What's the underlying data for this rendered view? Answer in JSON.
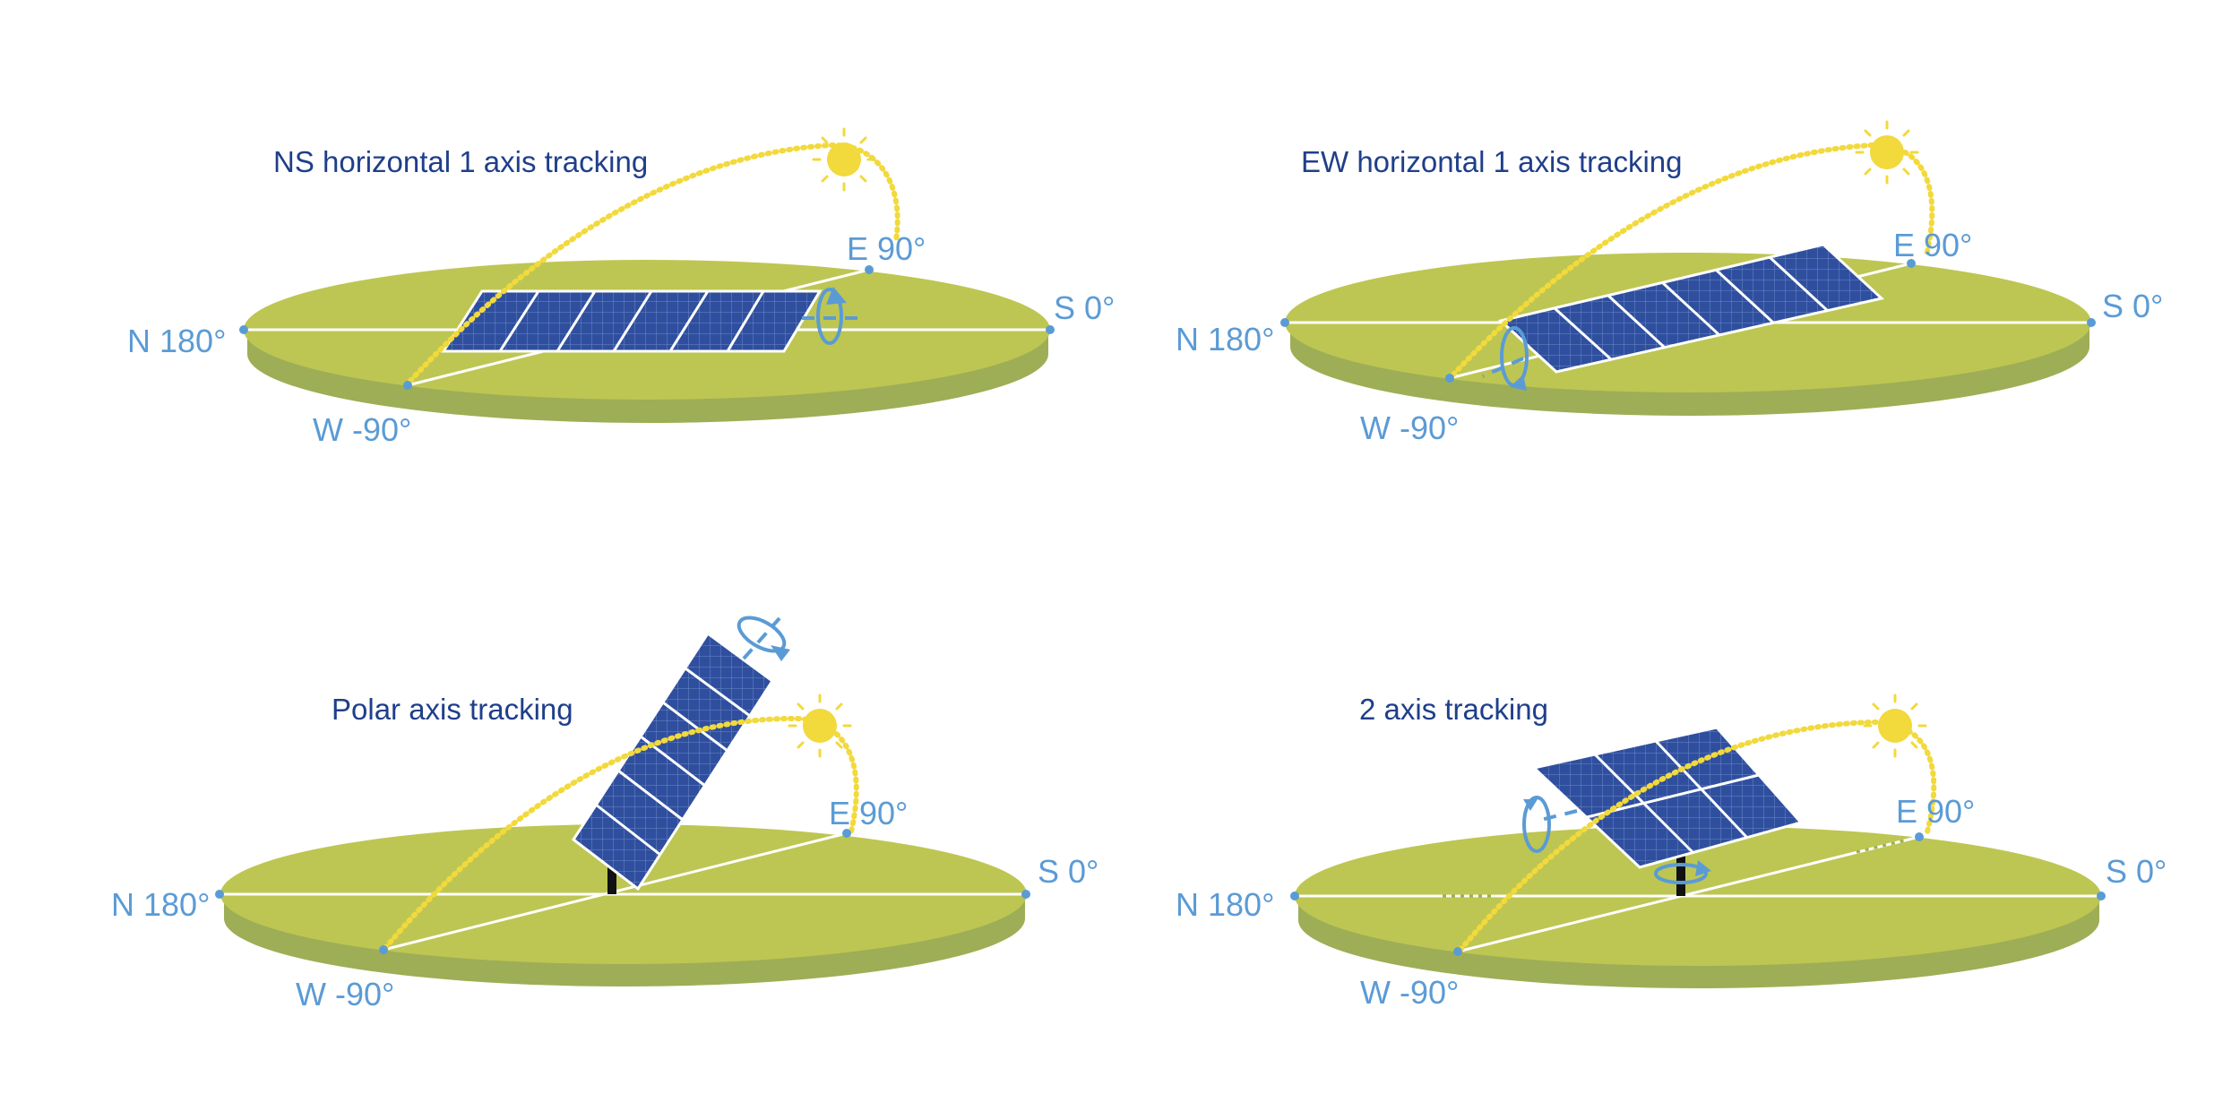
{
  "panels": [
    {
      "title": "NS horizontal 1 axis tracking",
      "north": "N 180°",
      "south": "S 0°",
      "east": "E 90°",
      "west": "W -90°"
    },
    {
      "title": "EW horizontal 1 axis tracking",
      "north": "N 180°",
      "south": "S 0°",
      "east": "E 90°",
      "west": "W -90°"
    },
    {
      "title": "Polar axis tracking",
      "north": "N 180°",
      "south": "S 0°",
      "east": "E 90°",
      "west": "W -90°"
    },
    {
      "title": "2 axis tracking",
      "north": "N 180°",
      "south": "S 0°",
      "east": "E 90°",
      "west": "W -90°"
    }
  ],
  "colors": {
    "ground_top": "#bdc652",
    "ground_side": "#9dae56",
    "panel": "#2f4f9e",
    "sun": "#f2d93c",
    "label": "#5b9bd5",
    "title": "#1f3f8a"
  },
  "icons": [
    "sun-icon",
    "solar-panel-icon",
    "rotation-arrow-icon"
  ]
}
